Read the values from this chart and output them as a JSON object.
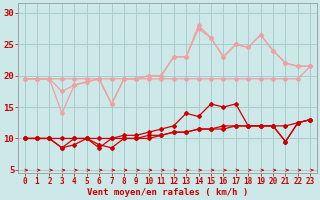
{
  "x": [
    0,
    1,
    2,
    3,
    4,
    5,
    6,
    7,
    8,
    9,
    10,
    11,
    12,
    13,
    14,
    15,
    16,
    17,
    18,
    19,
    20,
    21,
    22,
    23
  ],
  "line_flat_upper": [
    19.5,
    19.5,
    19.5,
    19.5,
    19.5,
    19.5,
    19.5,
    19.5,
    19.5,
    19.5,
    19.5,
    19.5,
    19.5,
    19.5,
    19.5,
    19.5,
    19.5,
    19.5,
    19.5,
    19.5,
    19.5,
    19.5,
    19.5,
    21.5
  ],
  "line_rafales_high": [
    19.5,
    19.5,
    19.5,
    17.5,
    18.5,
    19.0,
    19.5,
    15.5,
    19.5,
    19.5,
    20.0,
    20.0,
    23.0,
    23.0,
    28.0,
    26.0,
    23.0,
    25.0,
    24.5,
    26.5,
    24.0,
    22.0,
    21.5,
    21.5
  ],
  "line_rafales_mid": [
    19.5,
    19.5,
    19.5,
    14.0,
    18.5,
    19.0,
    19.5,
    15.5,
    19.5,
    19.5,
    20.0,
    20.0,
    23.0,
    23.0,
    27.5,
    26.0,
    23.0,
    25.0,
    24.5,
    26.5,
    24.0,
    22.0,
    21.5,
    21.5
  ],
  "line_vent_high": [
    10.0,
    10.0,
    10.0,
    8.5,
    10.0,
    10.0,
    8.5,
    10.0,
    10.5,
    10.5,
    11.0,
    11.5,
    12.0,
    14.0,
    13.5,
    15.5,
    15.0,
    15.5,
    12.0,
    12.0,
    12.0,
    9.5,
    12.5,
    13.0
  ],
  "line_vent_mid": [
    10.0,
    10.0,
    10.0,
    8.5,
    9.0,
    10.0,
    9.0,
    8.5,
    10.0,
    10.0,
    10.0,
    10.5,
    11.0,
    11.0,
    11.5,
    11.5,
    11.5,
    12.0,
    12.0,
    12.0,
    12.0,
    9.5,
    12.5,
    13.0
  ],
  "line_vent_low": [
    10.0,
    10.0,
    10.0,
    10.0,
    10.0,
    10.0,
    10.0,
    10.0,
    10.0,
    10.0,
    10.5,
    10.5,
    11.0,
    11.0,
    11.5,
    11.5,
    12.0,
    12.0,
    12.0,
    12.0,
    12.0,
    12.0,
    12.5,
    13.0
  ],
  "color_light": "#f0a0a0",
  "color_dark": "#cc0000",
  "bg_color": "#cce8e8",
  "grid_color": "#aacccc",
  "xlabel": "Vent moyen/en rafales ( km/h )",
  "ylim": [
    4.5,
    31.5
  ],
  "xlim": [
    -0.5,
    23.5
  ],
  "yticks": [
    5,
    10,
    15,
    20,
    25,
    30
  ],
  "xticks": [
    0,
    1,
    2,
    3,
    4,
    5,
    6,
    7,
    8,
    9,
    10,
    11,
    12,
    13,
    14,
    15,
    16,
    17,
    18,
    19,
    20,
    21,
    22,
    23
  ],
  "xlabel_fontsize": 6.5,
  "tick_fontsize": 5.5,
  "ytick_fontsize": 6.5
}
